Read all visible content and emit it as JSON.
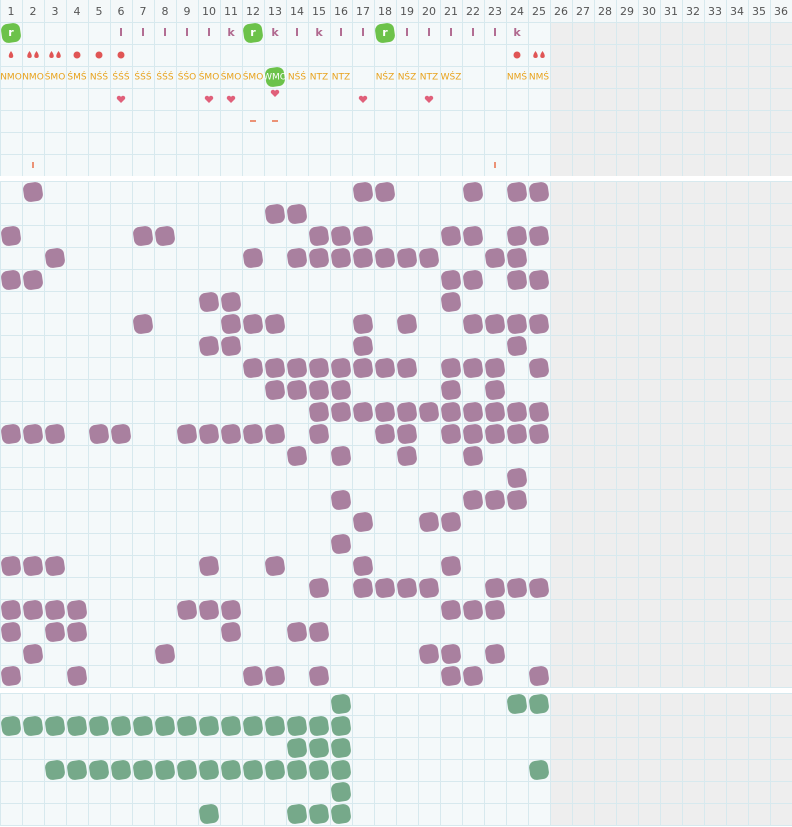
{
  "days": [
    1,
    2,
    3,
    4,
    5,
    6,
    7,
    8,
    9,
    10,
    11,
    12,
    13,
    14,
    15,
    16,
    17,
    18,
    19,
    20,
    21,
    22,
    23,
    24,
    25,
    26,
    27,
    28,
    29,
    30,
    31,
    32,
    33,
    34,
    35,
    36
  ],
  "activity": [
    {
      "t": "r",
      "badge": true
    },
    null,
    null,
    null,
    null,
    {
      "t": "l"
    },
    {
      "t": "l"
    },
    {
      "t": "l"
    },
    {
      "t": "l"
    },
    {
      "t": "l"
    },
    {
      "t": "k"
    },
    {
      "t": "r",
      "badge": true
    },
    {
      "t": "k"
    },
    {
      "t": "l"
    },
    {
      "t": "k"
    },
    {
      "t": "l"
    },
    {
      "t": "l"
    },
    {
      "t": "r",
      "badge": true
    },
    {
      "t": "l"
    },
    {
      "t": "l"
    },
    {
      "t": "l"
    },
    {
      "t": "l"
    },
    {
      "t": "l"
    },
    {
      "t": "k"
    },
    null
  ],
  "bleeding": [
    "drop",
    "drops",
    "drops",
    "dot",
    "dot",
    "dot",
    null,
    null,
    null,
    null,
    null,
    null,
    null,
    null,
    null,
    null,
    null,
    null,
    null,
    null,
    null,
    null,
    null,
    "dot",
    "drops"
  ],
  "codes": [
    {
      "t": "NMO"
    },
    {
      "t": "NMO"
    },
    {
      "t": "ŚMO"
    },
    {
      "t": "ŚMŚ"
    },
    {
      "t": "NŚŚ"
    },
    {
      "t": "ŚŚŚ"
    },
    {
      "t": "ŚŚŚ"
    },
    {
      "t": "ŚŚŚ"
    },
    {
      "t": "ŚŚO"
    },
    {
      "t": "ŚMO"
    },
    {
      "t": "ŚMO"
    },
    {
      "t": "ŚMO"
    },
    {
      "t": "WMO",
      "badge": true
    },
    {
      "t": "NŚŚ"
    },
    {
      "t": "NTZ"
    },
    {
      "t": "NTZ"
    },
    null,
    {
      "t": "NŚZ"
    },
    {
      "t": "NŚZ"
    },
    {
      "t": "NTZ"
    },
    {
      "t": "WŚZ"
    },
    null,
    null,
    {
      "t": "NMŚ"
    },
    {
      "t": "NMŚ"
    }
  ],
  "hearts": [
    6,
    10,
    11,
    13,
    17,
    20
  ],
  "dashes": [
    12,
    13
  ],
  "ticks": [
    2,
    23
  ],
  "purple_rows": [
    [
      2,
      17,
      18,
      22,
      24,
      25
    ],
    [
      13,
      14
    ],
    [
      1,
      7,
      8,
      15,
      16,
      17,
      21,
      22,
      24,
      25
    ],
    [
      3,
      12,
      14,
      15,
      16,
      17,
      18,
      19,
      20,
      23,
      24
    ],
    [
      1,
      2,
      21,
      22,
      24,
      25
    ],
    [
      10,
      11,
      21
    ],
    [
      7,
      11,
      12,
      13,
      17,
      19,
      22,
      23,
      24,
      25
    ],
    [
      10,
      11,
      17,
      24
    ],
    [
      12,
      13,
      14,
      15,
      16,
      17,
      18,
      19,
      21,
      22,
      23,
      25
    ],
    [
      13,
      14,
      15,
      16,
      21,
      23
    ],
    [
      15,
      16,
      17,
      18,
      19,
      20,
      21,
      22,
      23,
      24,
      25
    ],
    [
      1,
      2,
      3,
      5,
      6,
      9,
      10,
      11,
      12,
      13,
      15,
      18,
      19,
      21,
      22,
      23,
      24,
      25
    ],
    [
      14,
      16,
      19,
      22
    ],
    [
      24
    ],
    [
      16,
      22,
      23,
      24
    ],
    [
      17,
      20,
      21
    ],
    [
      16
    ],
    [
      1,
      2,
      3,
      10,
      13,
      17,
      21
    ],
    [
      15,
      17,
      18,
      19,
      20,
      23,
      24,
      25
    ],
    [
      1,
      2,
      3,
      4,
      9,
      10,
      11,
      21,
      22,
      23
    ],
    [
      1,
      3,
      4,
      11,
      14,
      15
    ],
    [
      2,
      8,
      20,
      21,
      23
    ],
    [
      1,
      4,
      12,
      13,
      15,
      21,
      22,
      25
    ]
  ],
  "green_rows": [
    [
      16,
      24,
      25
    ],
    [
      1,
      2,
      3,
      4,
      5,
      6,
      7,
      8,
      9,
      10,
      11,
      12,
      13,
      14,
      15,
      16
    ],
    [
      14,
      15,
      16
    ],
    [
      3,
      4,
      5,
      6,
      7,
      8,
      9,
      10,
      11,
      12,
      13,
      14,
      15,
      16,
      25
    ],
    [
      16
    ],
    [
      10,
      14,
      15,
      16
    ]
  ]
}
